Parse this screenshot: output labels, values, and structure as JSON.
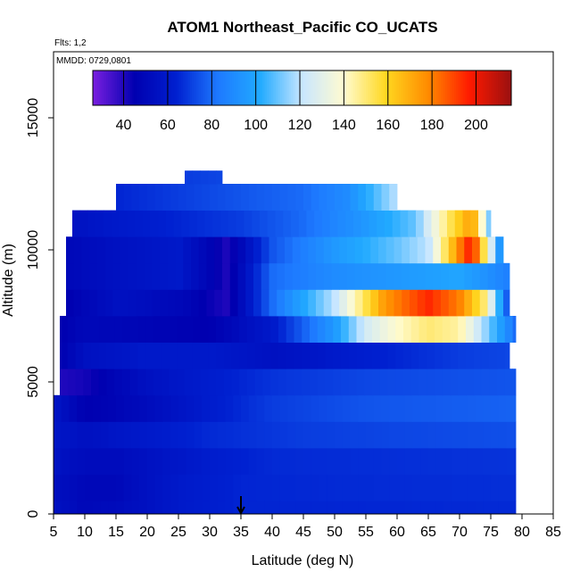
{
  "chart_data": {
    "type": "heatmap",
    "title": "ATOM1 Northeast_Pacific CO_UCATS",
    "flights_note": "Flts: 1,2",
    "date_note": "MMDD: 0729,0801",
    "xlabel": "Latitude (deg N)",
    "ylabel": "Altitude (m)",
    "xlim": [
      5,
      85
    ],
    "ylim": [
      0,
      17500
    ],
    "x_ticks": [
      5,
      10,
      15,
      20,
      25,
      30,
      35,
      40,
      45,
      50,
      55,
      60,
      65,
      70,
      75,
      80,
      85
    ],
    "y_ticks": [
      0,
      5000,
      10000,
      15000
    ],
    "grid": false,
    "colorbar": {
      "range": [
        26,
        216
      ],
      "ticks": [
        40,
        60,
        80,
        100,
        120,
        140,
        160,
        180,
        200
      ],
      "colors": [
        "#7a1fe0",
        "#0000b0",
        "#0020d0",
        "#1e7aff",
        "#21aaff",
        "#c8e6ff",
        "#fffbd0",
        "#ffd820",
        "#ff8c00",
        "#ff1a00",
        "#9a1010"
      ],
      "placement": "top"
    },
    "marker": {
      "latitude": 35,
      "altitude": 0,
      "symbol": "down-arrow"
    },
    "altitude_layers": [
      {
        "alt": [
          0,
          500
        ],
        "lat": [
          5,
          79
        ],
        "points": [
          [
            5,
            55
          ],
          [
            10,
            50
          ],
          [
            15,
            52
          ],
          [
            20,
            55
          ],
          [
            25,
            60
          ],
          [
            35,
            65
          ],
          [
            50,
            65
          ],
          [
            79,
            66
          ]
        ]
      },
      {
        "alt": [
          500,
          1500
        ],
        "lat": [
          5,
          79
        ],
        "points": [
          [
            5,
            54
          ],
          [
            10,
            50
          ],
          [
            15,
            50
          ],
          [
            20,
            55
          ],
          [
            25,
            60
          ],
          [
            35,
            65
          ],
          [
            50,
            66
          ],
          [
            79,
            67
          ]
        ]
      },
      {
        "alt": [
          1500,
          2500
        ],
        "lat": [
          5,
          79
        ],
        "points": [
          [
            5,
            56
          ],
          [
            10,
            52
          ],
          [
            15,
            52
          ],
          [
            20,
            55
          ],
          [
            30,
            62
          ],
          [
            40,
            66
          ],
          [
            60,
            67
          ],
          [
            79,
            68
          ]
        ]
      },
      {
        "alt": [
          2500,
          3500
        ],
        "lat": [
          5,
          79
        ],
        "points": [
          [
            5,
            58
          ],
          [
            10,
            55
          ],
          [
            20,
            60
          ],
          [
            30,
            66
          ],
          [
            45,
            70
          ],
          [
            60,
            72
          ],
          [
            79,
            74
          ]
        ]
      },
      {
        "alt": [
          3500,
          4500
        ],
        "lat": [
          5,
          79
        ],
        "points": [
          [
            5,
            58
          ],
          [
            10,
            45
          ],
          [
            15,
            48
          ],
          [
            20,
            52
          ],
          [
            30,
            62
          ],
          [
            40,
            70
          ],
          [
            55,
            75
          ],
          [
            79,
            78
          ]
        ]
      },
      {
        "alt": [
          4500,
          5500
        ],
        "lat": [
          6,
          79
        ],
        "points": [
          [
            6,
            40
          ],
          [
            10,
            42
          ],
          [
            20,
            55
          ],
          [
            30,
            62
          ],
          [
            40,
            68
          ],
          [
            55,
            72
          ],
          [
            70,
            74
          ],
          [
            79,
            75
          ]
        ]
      },
      {
        "alt": [
          5500,
          6500
        ],
        "lat": [
          6,
          78
        ],
        "points": [
          [
            6,
            45
          ],
          [
            10,
            55
          ],
          [
            20,
            60
          ],
          [
            30,
            60
          ],
          [
            40,
            55
          ],
          [
            50,
            60
          ],
          [
            60,
            65
          ],
          [
            70,
            70
          ],
          [
            78,
            72
          ]
        ]
      },
      {
        "alt": [
          6500,
          7500
        ],
        "lat": [
          6,
          79
        ],
        "points": [
          [
            6,
            45
          ],
          [
            10,
            50
          ],
          [
            20,
            48
          ],
          [
            30,
            45
          ],
          [
            40,
            60
          ],
          [
            50,
            95
          ],
          [
            55,
            125
          ],
          [
            60,
            140
          ],
          [
            65,
            150
          ],
          [
            70,
            145
          ],
          [
            79,
            80
          ]
        ]
      },
      {
        "alt": [
          7500,
          8500
        ],
        "lat": [
          7,
          78
        ],
        "points": [
          [
            7,
            45
          ],
          [
            15,
            55
          ],
          [
            25,
            50
          ],
          [
            33,
            40
          ],
          [
            40,
            80
          ],
          [
            50,
            120
          ],
          [
            58,
            175
          ],
          [
            65,
            195
          ],
          [
            70,
            180
          ],
          [
            74,
            150
          ],
          [
            78,
            70
          ]
        ]
      },
      {
        "alt": [
          8500,
          9500
        ],
        "lat": [
          7,
          78
        ],
        "points": [
          [
            7,
            50
          ],
          [
            15,
            55
          ],
          [
            25,
            60
          ],
          [
            33,
            40
          ],
          [
            40,
            80
          ],
          [
            50,
            90
          ],
          [
            60,
            95
          ],
          [
            70,
            100
          ],
          [
            78,
            85
          ]
        ]
      },
      {
        "alt": [
          9500,
          10500
        ],
        "lat": [
          7,
          77
        ],
        "points": [
          [
            7,
            50
          ],
          [
            15,
            55
          ],
          [
            25,
            60
          ],
          [
            33,
            40
          ],
          [
            40,
            75
          ],
          [
            50,
            95
          ],
          [
            60,
            110
          ],
          [
            65,
            120
          ],
          [
            70,
            180
          ],
          [
            72,
            200
          ],
          [
            77,
            80
          ]
        ]
      },
      {
        "alt": [
          10500,
          11500
        ],
        "lat": [
          8,
          75
        ],
        "points": [
          [
            8,
            55
          ],
          [
            15,
            60
          ],
          [
            25,
            65
          ],
          [
            35,
            70
          ],
          [
            45,
            80
          ],
          [
            55,
            95
          ],
          [
            63,
            110
          ],
          [
            68,
            150
          ],
          [
            72,
            175
          ],
          [
            75,
            110
          ]
        ]
      },
      {
        "alt": [
          11500,
          12500
        ],
        "lat": [
          15,
          60
        ],
        "points": [
          [
            15,
            65
          ],
          [
            25,
            70
          ],
          [
            35,
            75
          ],
          [
            45,
            80
          ],
          [
            52,
            90
          ],
          [
            60,
            120
          ]
        ]
      },
      {
        "alt": [
          12500,
          13000
        ],
        "lat": [
          26,
          32
        ],
        "points": [
          [
            26,
            70
          ],
          [
            32,
            72
          ]
        ]
      }
    ]
  }
}
